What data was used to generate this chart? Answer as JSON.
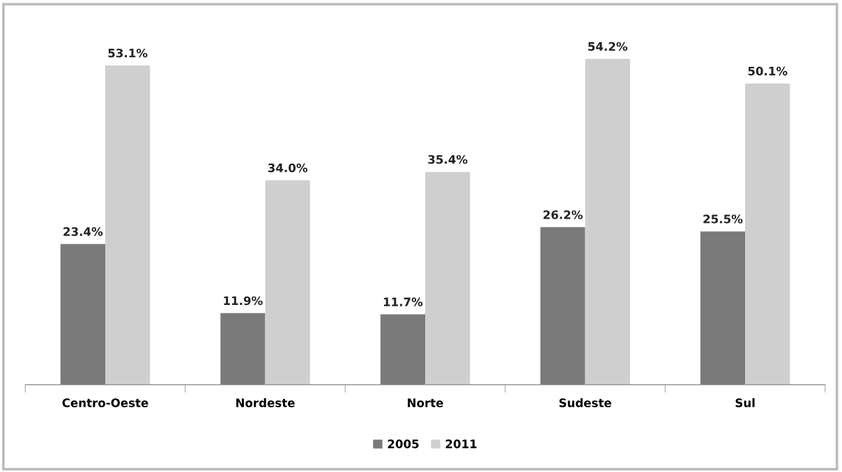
{
  "chart_data": {
    "type": "bar",
    "categories": [
      "Centro-Oeste",
      "Nordeste",
      "Norte",
      "Sudeste",
      "Sul"
    ],
    "series": [
      {
        "name": "2005",
        "color": "#7a7a7a",
        "values": [
          23.4,
          11.9,
          11.7,
          26.2,
          25.5
        ],
        "value_labels": [
          "23.4%",
          "11.9%",
          "11.7%",
          "26.2%",
          "25.5%"
        ]
      },
      {
        "name": "2011",
        "color": "#cfcfcf",
        "values": [
          53.1,
          34.0,
          35.4,
          54.2,
          50.1
        ],
        "value_labels": [
          "53.1%",
          "34.0%",
          "35.4%",
          "54.2%",
          "50.1%"
        ]
      }
    ],
    "legend": "bottom",
    "grid": false
  }
}
